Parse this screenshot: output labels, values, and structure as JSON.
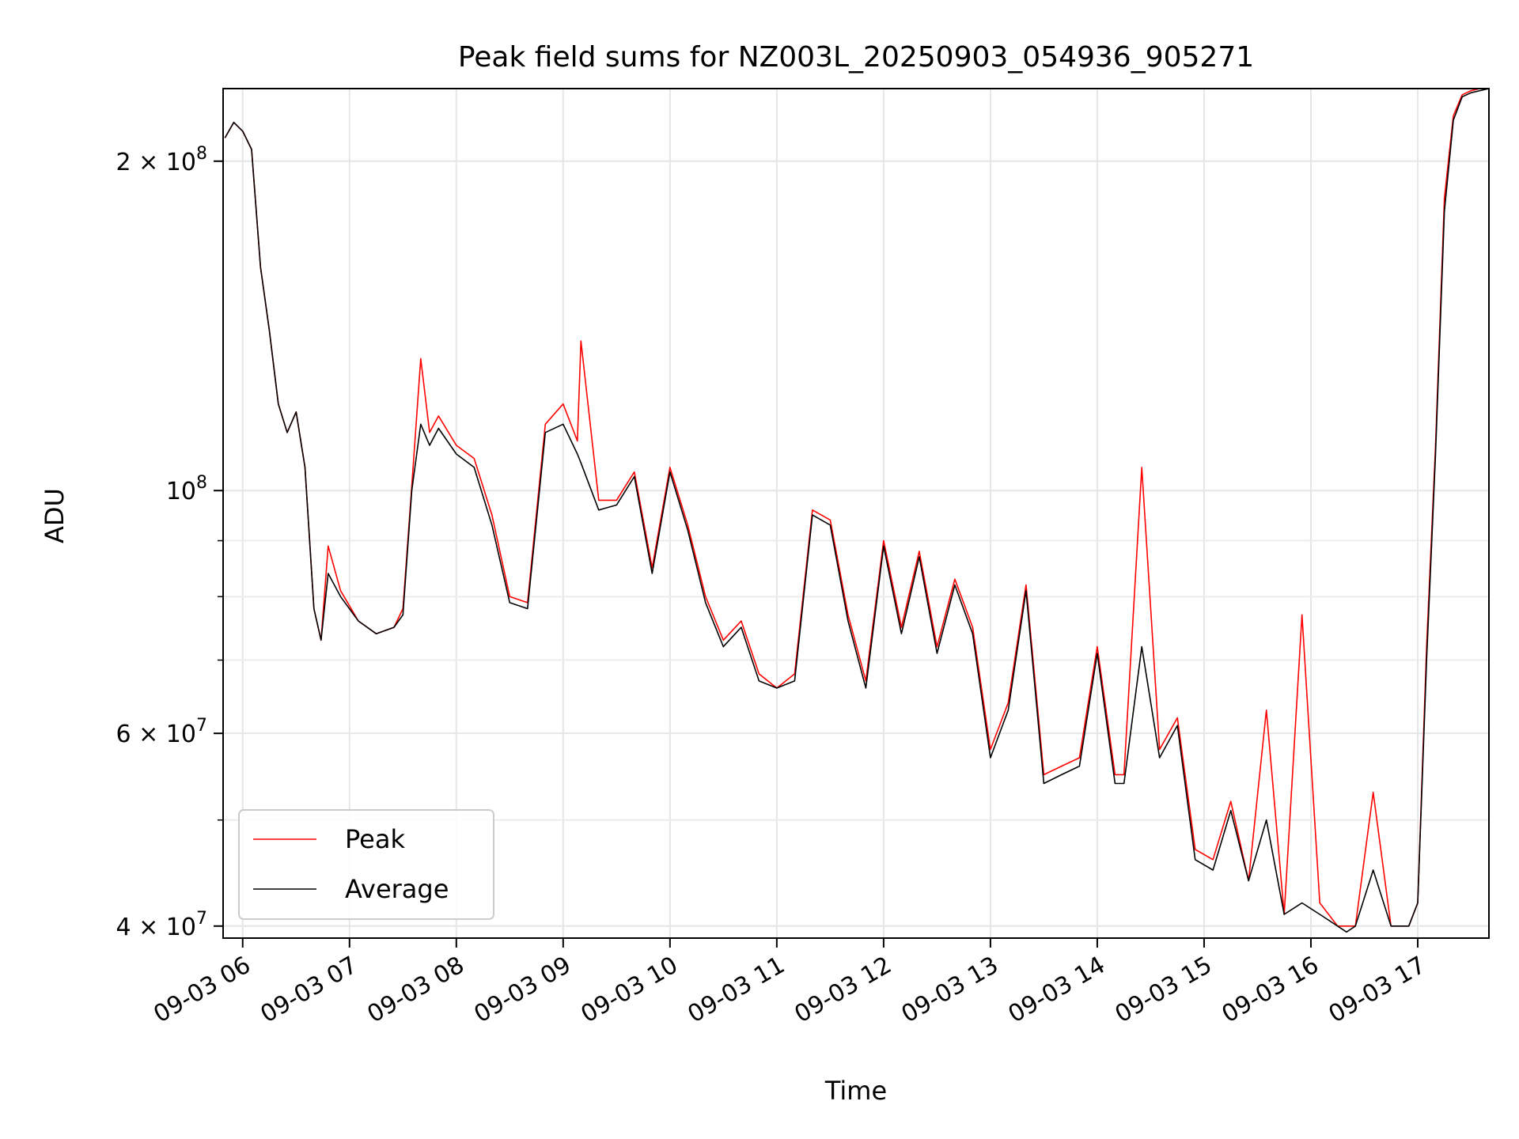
{
  "chart_data": {
    "type": "line",
    "title": "Peak field sums for NZ003L_20250903_054936_905271",
    "xlabel": "Time",
    "ylabel": "ADU",
    "yscale": "log",
    "ylim": [
      39000000,
      233000000
    ],
    "xlim": [
      "09-03 05:49",
      "09-03 17:40"
    ],
    "grid": true,
    "legend_position": "lower-left",
    "x_ticks": [
      "09-03 06",
      "09-03 07",
      "09-03 08",
      "09-03 09",
      "09-03 10",
      "09-03 11",
      "09-03 12",
      "09-03 13",
      "09-03 14",
      "09-03 15",
      "09-03 16",
      "09-03 17"
    ],
    "y_ticks": [
      {
        "value": 40000000,
        "label": "4 × 10^7"
      },
      {
        "value": 60000000,
        "label": "6 × 10^7"
      },
      {
        "value": 100000000,
        "label": "10^8"
      },
      {
        "value": 200000000,
        "label": "2 × 10^8"
      }
    ],
    "y_minor_ticks": [
      50000000,
      70000000,
      80000000,
      90000000
    ],
    "series": [
      {
        "name": "Peak",
        "color": "#ff0000",
        "x": [
          "09-03 05:50",
          "09-03 05:55",
          "09-03 06:00",
          "09-03 06:05",
          "09-03 06:10",
          "09-03 06:15",
          "09-03 06:20",
          "09-03 06:25",
          "09-03 06:30",
          "09-03 06:35",
          "09-03 06:40",
          "09-03 06:44",
          "09-03 06:48",
          "09-03 06:55",
          "09-03 07:05",
          "09-03 07:15",
          "09-03 07:25",
          "09-03 07:30",
          "09-03 07:35",
          "09-03 07:40",
          "09-03 07:45",
          "09-03 07:50",
          "09-03 08:00",
          "09-03 08:10",
          "09-03 08:20",
          "09-03 08:30",
          "09-03 08:40",
          "09-03 08:50",
          "09-03 09:00",
          "09-03 09:08",
          "09-03 09:10",
          "09-03 09:20",
          "09-03 09:30",
          "09-03 09:40",
          "09-03 09:50",
          "09-03 10:00",
          "09-03 10:10",
          "09-03 10:20",
          "09-03 10:30",
          "09-03 10:40",
          "09-03 10:50",
          "09-03 11:00",
          "09-03 11:10",
          "09-03 11:20",
          "09-03 11:30",
          "09-03 11:40",
          "09-03 11:50",
          "09-03 12:00",
          "09-03 12:10",
          "09-03 12:20",
          "09-03 12:30",
          "09-03 12:40",
          "09-03 12:50",
          "09-03 13:00",
          "09-03 13:10",
          "09-03 13:20",
          "09-03 13:30",
          "09-03 13:40",
          "09-03 13:50",
          "09-03 14:00",
          "09-03 14:10",
          "09-03 14:15",
          "09-03 14:25",
          "09-03 14:35",
          "09-03 14:45",
          "09-03 14:55",
          "09-03 15:05",
          "09-03 15:15",
          "09-03 15:25",
          "09-03 15:35",
          "09-03 15:45",
          "09-03 15:55",
          "09-03 16:05",
          "09-03 16:15",
          "09-03 16:20",
          "09-03 16:25",
          "09-03 16:35",
          "09-03 16:45",
          "09-03 16:55",
          "09-03 17:00",
          "09-03 17:05",
          "09-03 17:10",
          "09-03 17:15",
          "09-03 17:20",
          "09-03 17:25",
          "09-03 17:30",
          "09-03 17:35",
          "09-03 17:40"
        ],
        "values": [
          210000000,
          217000000,
          213000000,
          205000000,
          160000000,
          140000000,
          120000000,
          113000000,
          118000000,
          105000000,
          78000000,
          73000000,
          89000000,
          81000000,
          76000000,
          74000000,
          75000000,
          78000000,
          101000000,
          132000000,
          113000000,
          117000000,
          110000000,
          107000000,
          95000000,
          80000000,
          79000000,
          115000000,
          120000000,
          111000000,
          137000000,
          98000000,
          98000000,
          104000000,
          85000000,
          105000000,
          93000000,
          80000000,
          73000000,
          76000000,
          68000000,
          66000000,
          68000000,
          96000000,
          94000000,
          77000000,
          67000000,
          90000000,
          75000000,
          88000000,
          72000000,
          83000000,
          75000000,
          58000000,
          64000000,
          82000000,
          55000000,
          56000000,
          57000000,
          72000000,
          55000000,
          55000000,
          105000000,
          58000000,
          62000000,
          47000000,
          46000000,
          52000000,
          44000000,
          63000000,
          41000000,
          77000000,
          42000000,
          40000000,
          40000000,
          40000000,
          53000000,
          40000000,
          40000000,
          42000000,
          72000000,
          110000000,
          185000000,
          220000000,
          230000000,
          232000000,
          233000000,
          233000000
        ]
      },
      {
        "name": "Average",
        "color": "#000000",
        "x": [
          "09-03 05:50",
          "09-03 05:55",
          "09-03 06:00",
          "09-03 06:05",
          "09-03 06:10",
          "09-03 06:15",
          "09-03 06:20",
          "09-03 06:25",
          "09-03 06:30",
          "09-03 06:35",
          "09-03 06:40",
          "09-03 06:44",
          "09-03 06:48",
          "09-03 06:55",
          "09-03 07:05",
          "09-03 07:15",
          "09-03 07:25",
          "09-03 07:30",
          "09-03 07:35",
          "09-03 07:40",
          "09-03 07:45",
          "09-03 07:50",
          "09-03 08:00",
          "09-03 08:10",
          "09-03 08:20",
          "09-03 08:30",
          "09-03 08:40",
          "09-03 08:50",
          "09-03 09:00",
          "09-03 09:08",
          "09-03 09:10",
          "09-03 09:20",
          "09-03 09:30",
          "09-03 09:40",
          "09-03 09:50",
          "09-03 10:00",
          "09-03 10:10",
          "09-03 10:20",
          "09-03 10:30",
          "09-03 10:40",
          "09-03 10:50",
          "09-03 11:00",
          "09-03 11:10",
          "09-03 11:20",
          "09-03 11:30",
          "09-03 11:40",
          "09-03 11:50",
          "09-03 12:00",
          "09-03 12:10",
          "09-03 12:20",
          "09-03 12:30",
          "09-03 12:40",
          "09-03 12:50",
          "09-03 13:00",
          "09-03 13:10",
          "09-03 13:20",
          "09-03 13:30",
          "09-03 13:40",
          "09-03 13:50",
          "09-03 14:00",
          "09-03 14:10",
          "09-03 14:15",
          "09-03 14:25",
          "09-03 14:35",
          "09-03 14:45",
          "09-03 14:55",
          "09-03 15:05",
          "09-03 15:15",
          "09-03 15:25",
          "09-03 15:35",
          "09-03 15:45",
          "09-03 15:55",
          "09-03 16:05",
          "09-03 16:15",
          "09-03 16:20",
          "09-03 16:25",
          "09-03 16:35",
          "09-03 16:45",
          "09-03 16:55",
          "09-03 17:00",
          "09-03 17:05",
          "09-03 17:10",
          "09-03 17:15",
          "09-03 17:20",
          "09-03 17:25",
          "09-03 17:30",
          "09-03 17:35",
          "09-03 17:40"
        ],
        "values": [
          210000000,
          217000000,
          213000000,
          205000000,
          160000000,
          140000000,
          120000000,
          113000000,
          118000000,
          105000000,
          78000000,
          73000000,
          84000000,
          80000000,
          76000000,
          74000000,
          75000000,
          77000000,
          100000000,
          115000000,
          110000000,
          114000000,
          108000000,
          105000000,
          93000000,
          79000000,
          78000000,
          113000000,
          115000000,
          108000000,
          106000000,
          96000000,
          97000000,
          103000000,
          84000000,
          104000000,
          92000000,
          79000000,
          72000000,
          75000000,
          67000000,
          66000000,
          67000000,
          95000000,
          93000000,
          76000000,
          66000000,
          89000000,
          74000000,
          87000000,
          71000000,
          82000000,
          74000000,
          57000000,
          63000000,
          81000000,
          54000000,
          55000000,
          56000000,
          71000000,
          54000000,
          54000000,
          72000000,
          57000000,
          61000000,
          46000000,
          45000000,
          51000000,
          44000000,
          50000000,
          41000000,
          42000000,
          41000000,
          40000000,
          39500000,
          40000000,
          45000000,
          40000000,
          40000000,
          42000000,
          70000000,
          108000000,
          180000000,
          218000000,
          229000000,
          231000000,
          232000000,
          233000000
        ]
      }
    ]
  }
}
